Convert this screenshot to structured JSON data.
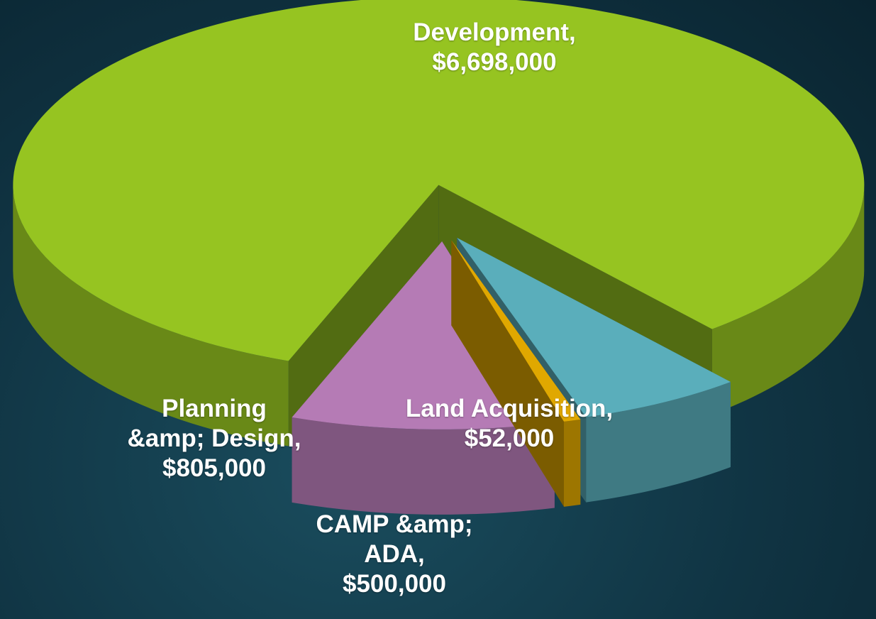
{
  "chart_data": {
    "type": "pie3d",
    "categories": [
      "Development,",
      "Planning &amp; Design,",
      "Land Acquisition,",
      "CAMP &amp; ADA,"
    ],
    "values": [
      6698000,
      805000,
      52000,
      500000
    ],
    "value_labels": [
      "$6,698,000",
      "$805,000",
      "$52,000",
      "$500,000"
    ],
    "colors": [
      "#96c421",
      "#b57bb5",
      "#e0a800",
      "#5aaebb"
    ]
  }
}
